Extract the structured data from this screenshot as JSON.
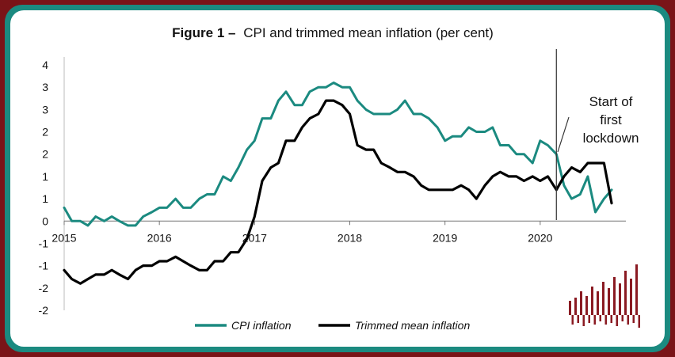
{
  "chart_data": {
    "type": "line",
    "title_bold": "Figure 1 –",
    "title_rest": "CPI and trimmed mean inflation (per cent)",
    "y_tick_labels": [
      "4",
      "3",
      "3",
      "2",
      "2",
      "1",
      "1",
      "0",
      "-1",
      "-1",
      "-2",
      "-2"
    ],
    "ylim": [
      -2.0,
      3.5
    ],
    "x_tick_labels": [
      "2015",
      "2016",
      "2017",
      "2018",
      "2019",
      "2020"
    ],
    "xlim": [
      2015.0,
      2020.9
    ],
    "annotation": {
      "lines": [
        "Start of",
        "first",
        "lockdown"
      ],
      "x": 2020.17
    },
    "legend_position": "bottom",
    "series": [
      {
        "name": "CPI inflation",
        "color": "#1b8a80",
        "points": [
          [
            2015.0,
            0.3
          ],
          [
            2015.08,
            0.0
          ],
          [
            2015.17,
            0.0
          ],
          [
            2015.25,
            -0.1
          ],
          [
            2015.33,
            0.1
          ],
          [
            2015.42,
            0.0
          ],
          [
            2015.5,
            0.1
          ],
          [
            2015.58,
            0.0
          ],
          [
            2015.67,
            -0.1
          ],
          [
            2015.75,
            -0.1
          ],
          [
            2015.83,
            0.1
          ],
          [
            2015.92,
            0.2
          ],
          [
            2016.0,
            0.3
          ],
          [
            2016.08,
            0.3
          ],
          [
            2016.17,
            0.5
          ],
          [
            2016.25,
            0.3
          ],
          [
            2016.33,
            0.3
          ],
          [
            2016.42,
            0.5
          ],
          [
            2016.5,
            0.6
          ],
          [
            2016.58,
            0.6
          ],
          [
            2016.67,
            1.0
          ],
          [
            2016.75,
            0.9
          ],
          [
            2016.83,
            1.2
          ],
          [
            2016.92,
            1.6
          ],
          [
            2017.0,
            1.8
          ],
          [
            2017.08,
            2.3
          ],
          [
            2017.17,
            2.3
          ],
          [
            2017.25,
            2.7
          ],
          [
            2017.33,
            2.9
          ],
          [
            2017.42,
            2.6
          ],
          [
            2017.5,
            2.6
          ],
          [
            2017.58,
            2.9
          ],
          [
            2017.67,
            3.0
          ],
          [
            2017.75,
            3.0
          ],
          [
            2017.83,
            3.1
          ],
          [
            2017.92,
            3.0
          ],
          [
            2018.0,
            3.0
          ],
          [
            2018.08,
            2.7
          ],
          [
            2018.17,
            2.5
          ],
          [
            2018.25,
            2.4
          ],
          [
            2018.33,
            2.4
          ],
          [
            2018.42,
            2.4
          ],
          [
            2018.5,
            2.5
          ],
          [
            2018.58,
            2.7
          ],
          [
            2018.67,
            2.4
          ],
          [
            2018.75,
            2.4
          ],
          [
            2018.83,
            2.3
          ],
          [
            2018.92,
            2.1
          ],
          [
            2019.0,
            1.8
          ],
          [
            2019.08,
            1.9
          ],
          [
            2019.17,
            1.9
          ],
          [
            2019.25,
            2.1
          ],
          [
            2019.33,
            2.0
          ],
          [
            2019.42,
            2.0
          ],
          [
            2019.5,
            2.1
          ],
          [
            2019.58,
            1.7
          ],
          [
            2019.67,
            1.7
          ],
          [
            2019.75,
            1.5
          ],
          [
            2019.83,
            1.5
          ],
          [
            2019.92,
            1.3
          ],
          [
            2020.0,
            1.8
          ],
          [
            2020.08,
            1.7
          ],
          [
            2020.17,
            1.5
          ],
          [
            2020.25,
            0.8
          ],
          [
            2020.33,
            0.5
          ],
          [
            2020.42,
            0.6
          ],
          [
            2020.5,
            1.0
          ],
          [
            2020.58,
            0.2
          ],
          [
            2020.67,
            0.5
          ],
          [
            2020.75,
            0.7
          ]
        ]
      },
      {
        "name": "Trimmed mean inflation",
        "color": "#000000",
        "points": [
          [
            2015.0,
            -1.1
          ],
          [
            2015.08,
            -1.3
          ],
          [
            2015.17,
            -1.4
          ],
          [
            2015.25,
            -1.3
          ],
          [
            2015.33,
            -1.2
          ],
          [
            2015.42,
            -1.2
          ],
          [
            2015.5,
            -1.1
          ],
          [
            2015.58,
            -1.2
          ],
          [
            2015.67,
            -1.3
          ],
          [
            2015.75,
            -1.1
          ],
          [
            2015.83,
            -1.0
          ],
          [
            2015.92,
            -1.0
          ],
          [
            2016.0,
            -0.9
          ],
          [
            2016.08,
            -0.9
          ],
          [
            2016.17,
            -0.8
          ],
          [
            2016.25,
            -0.9
          ],
          [
            2016.33,
            -1.0
          ],
          [
            2016.42,
            -1.1
          ],
          [
            2016.5,
            -1.1
          ],
          [
            2016.58,
            -0.9
          ],
          [
            2016.67,
            -0.9
          ],
          [
            2016.75,
            -0.7
          ],
          [
            2016.83,
            -0.7
          ],
          [
            2016.92,
            -0.4
          ],
          [
            2017.0,
            0.1
          ],
          [
            2017.08,
            0.9
          ],
          [
            2017.17,
            1.2
          ],
          [
            2017.25,
            1.3
          ],
          [
            2017.33,
            1.8
          ],
          [
            2017.42,
            1.8
          ],
          [
            2017.5,
            2.1
          ],
          [
            2017.58,
            2.3
          ],
          [
            2017.67,
            2.4
          ],
          [
            2017.75,
            2.7
          ],
          [
            2017.83,
            2.7
          ],
          [
            2017.92,
            2.6
          ],
          [
            2018.0,
            2.4
          ],
          [
            2018.08,
            1.7
          ],
          [
            2018.17,
            1.6
          ],
          [
            2018.25,
            1.6
          ],
          [
            2018.33,
            1.3
          ],
          [
            2018.42,
            1.2
          ],
          [
            2018.5,
            1.1
          ],
          [
            2018.58,
            1.1
          ],
          [
            2018.67,
            1.0
          ],
          [
            2018.75,
            0.8
          ],
          [
            2018.83,
            0.7
          ],
          [
            2018.92,
            0.7
          ],
          [
            2019.0,
            0.7
          ],
          [
            2019.08,
            0.7
          ],
          [
            2019.17,
            0.8
          ],
          [
            2019.25,
            0.7
          ],
          [
            2019.33,
            0.5
          ],
          [
            2019.42,
            0.8
          ],
          [
            2019.5,
            1.0
          ],
          [
            2019.58,
            1.1
          ],
          [
            2019.67,
            1.0
          ],
          [
            2019.75,
            1.0
          ],
          [
            2019.83,
            0.9
          ],
          [
            2019.92,
            1.0
          ],
          [
            2020.0,
            0.9
          ],
          [
            2020.08,
            1.0
          ],
          [
            2020.17,
            0.7
          ],
          [
            2020.25,
            1.0
          ],
          [
            2020.33,
            1.2
          ],
          [
            2020.42,
            1.1
          ],
          [
            2020.5,
            1.3
          ],
          [
            2020.58,
            1.3
          ],
          [
            2020.67,
            1.3
          ],
          [
            2020.75,
            0.4
          ]
        ]
      }
    ]
  },
  "logo": {
    "name": "bars-logo",
    "color": "#8a1a22"
  }
}
